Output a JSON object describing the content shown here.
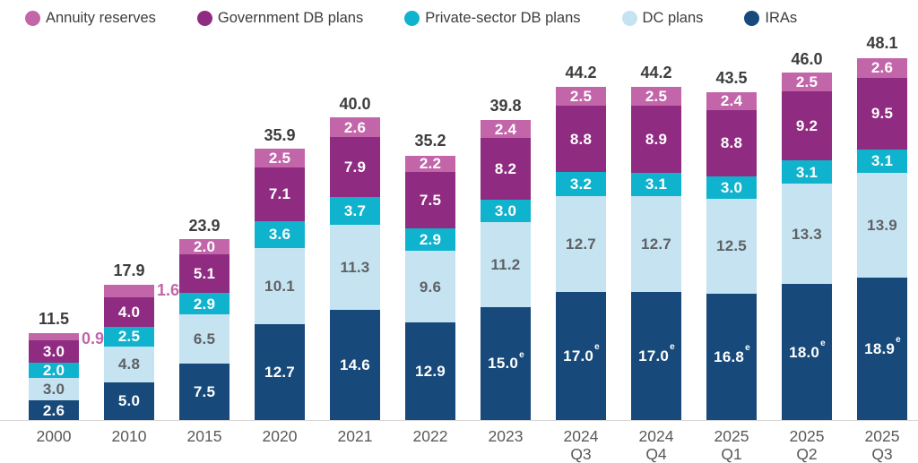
{
  "legend": {
    "items": [
      {
        "label": "Annuity reserves",
        "color": "#c266a9"
      },
      {
        "label": "Government DB plans",
        "color": "#8f2b80"
      },
      {
        "label": "Private-sector DB plans",
        "color": "#10b3cd"
      },
      {
        "label": "DC plans",
        "color": "#c5e3f0"
      },
      {
        "label": "IRAs",
        "color": "#17497a"
      }
    ]
  },
  "chart_data": {
    "type": "bar",
    "stacked": true,
    "legend_position": "top",
    "grid": false,
    "estimate_marker": "e",
    "categories": [
      "2000",
      "2010",
      "2015",
      "2020",
      "2021",
      "2022",
      "2023",
      "2024 Q3",
      "2024 Q4",
      "2025 Q1",
      "2025 Q2",
      "2025 Q3"
    ],
    "totals": [
      11.5,
      17.9,
      23.9,
      35.9,
      40.0,
      35.2,
      39.8,
      44.2,
      44.2,
      43.5,
      46.0,
      48.1
    ],
    "total_labels": [
      "11.5",
      "17.9",
      "23.9",
      "35.9",
      "40.0",
      "35.2",
      "39.8",
      "44.2",
      "44.2",
      "43.5",
      "46.0",
      "48.1"
    ],
    "series": [
      {
        "name": "IRAs",
        "color": "#17497a",
        "label_color": "#ffffff",
        "values": [
          2.6,
          5.0,
          7.5,
          12.7,
          14.6,
          12.9,
          15.0,
          17.0,
          17.0,
          16.8,
          18.0,
          18.9
        ],
        "labels": [
          "2.6",
          "5.0",
          "7.5",
          "12.7",
          "14.6",
          "12.9",
          "15.0",
          "17.0",
          "17.0",
          "16.8",
          "18.0",
          "18.9"
        ],
        "estimated": [
          false,
          false,
          false,
          false,
          false,
          false,
          true,
          true,
          true,
          true,
          true,
          true
        ]
      },
      {
        "name": "DC plans",
        "color": "#c5e3f0",
        "label_color": "#5f6165",
        "values": [
          3.0,
          4.8,
          6.5,
          10.1,
          11.3,
          9.6,
          11.2,
          12.7,
          12.7,
          12.5,
          13.3,
          13.9
        ],
        "labels": [
          "3.0",
          "4.8",
          "6.5",
          "10.1",
          "11.3",
          "9.6",
          "11.2",
          "12.7",
          "12.7",
          "12.5",
          "13.3",
          "13.9"
        ]
      },
      {
        "name": "Private-sector DB plans",
        "color": "#10b3cd",
        "label_color": "#ffffff",
        "values": [
          2.0,
          2.5,
          2.9,
          3.6,
          3.7,
          2.9,
          3.0,
          3.2,
          3.1,
          3.0,
          3.1,
          3.1
        ],
        "labels": [
          "2.0",
          "2.5",
          "2.9",
          "3.6",
          "3.7",
          "2.9",
          "3.0",
          "3.2",
          "3.1",
          "3.0",
          "3.1",
          "3.1"
        ]
      },
      {
        "name": "Government DB plans",
        "color": "#8f2b80",
        "label_color": "#ffffff",
        "values": [
          3.0,
          4.0,
          5.1,
          7.1,
          7.9,
          7.5,
          8.2,
          8.8,
          8.9,
          8.8,
          9.2,
          9.5
        ],
        "labels": [
          "3.0",
          "4.0",
          "5.1",
          "7.1",
          "7.9",
          "7.5",
          "8.2",
          "8.8",
          "8.9",
          "8.8",
          "9.2",
          "9.5"
        ]
      },
      {
        "name": "Annuity reserves",
        "color": "#c266a9",
        "label_color": "#ffffff",
        "values": [
          0.9,
          1.6,
          2.0,
          2.5,
          2.6,
          2.2,
          2.4,
          2.5,
          2.5,
          2.4,
          2.5,
          2.6
        ],
        "labels": [
          "0.9",
          "1.6",
          "2.0",
          "2.5",
          "2.6",
          "2.2",
          "2.4",
          "2.5",
          "2.5",
          "2.4",
          "2.5",
          "2.6"
        ],
        "label_outside": [
          true,
          true,
          false,
          false,
          false,
          false,
          false,
          false,
          false,
          false,
          false,
          false
        ]
      }
    ]
  }
}
